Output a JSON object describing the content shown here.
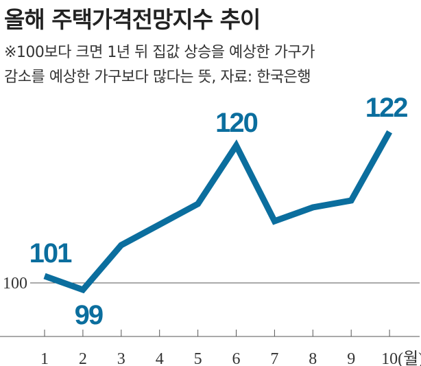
{
  "title": "올해 주택가격전망지수 추이",
  "subtitle_lines": [
    "※100보다 크면 1년 뒤 집값 상승을 예상한 가구가",
    "감소를 예상한 가구보다 많다는 뜻, 자료: 한국은행"
  ],
  "colors": {
    "line": "#0b6e9e",
    "grid": "#555555"
  },
  "chart_data": {
    "type": "line",
    "title": "올해 주택가격전망지수 추이",
    "x": [
      "1",
      "2",
      "3",
      "4",
      "5",
      "6",
      "7",
      "8",
      "9",
      "10(월)"
    ],
    "values": [
      101,
      99,
      105.5,
      108.5,
      111.5,
      120,
      109,
      111,
      112,
      122
    ],
    "labeled_points": [
      {
        "index": 0,
        "label": "101"
      },
      {
        "index": 1,
        "label": "99"
      },
      {
        "index": 5,
        "label": "120"
      },
      {
        "index": 9,
        "label": "122"
      }
    ],
    "y_reference": {
      "value": 100,
      "label": "100"
    },
    "ylim": [
      92,
      125
    ],
    "grid": false
  }
}
